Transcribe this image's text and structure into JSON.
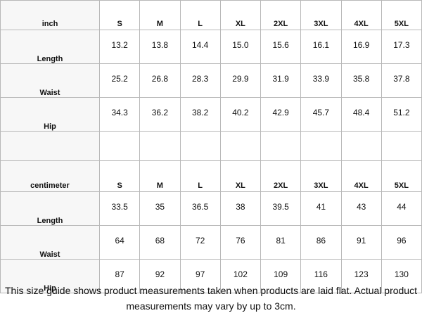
{
  "tables": [
    {
      "header": [
        "inch",
        "S",
        "M",
        "L",
        "XL",
        "2XL",
        "3XL",
        "4XL",
        "5XL"
      ],
      "rows": [
        [
          "Length",
          "13.2",
          "13.8",
          "14.4",
          "15.0",
          "15.6",
          "16.1",
          "16.9",
          "17.3"
        ],
        [
          "Waist",
          "25.2",
          "26.8",
          "28.3",
          "29.9",
          "31.9",
          "33.9",
          "35.8",
          "37.8"
        ],
        [
          "Hip",
          "34.3",
          "36.2",
          "38.2",
          "40.2",
          "42.9",
          "45.7",
          "48.4",
          "51.2"
        ]
      ]
    },
    {
      "header": [
        "centimeter",
        "S",
        "M",
        "L",
        "XL",
        "2XL",
        "3XL",
        "4XL",
        "5XL"
      ],
      "rows": [
        [
          "Length",
          "33.5",
          "35",
          "36.5",
          "38",
          "39.5",
          "41",
          "43",
          "44"
        ],
        [
          "Waist",
          "64",
          "68",
          "72",
          "76",
          "81",
          "86",
          "91",
          "96"
        ],
        [
          "Hip",
          "87",
          "92",
          "97",
          "102",
          "109",
          "116",
          "123",
          "130"
        ]
      ]
    }
  ],
  "note": "This size guide shows product measurements taken when products are laid flat. Actual product measurements may vary by up to 3cm."
}
